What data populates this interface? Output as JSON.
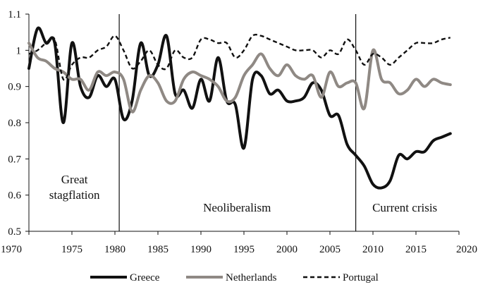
{
  "chart_data": {
    "type": "line",
    "title": "",
    "xlabel": "",
    "ylabel": "",
    "xlim": [
      1970,
      2020
    ],
    "ylim": [
      0.5,
      1.1
    ],
    "x_ticks": [
      1970,
      1975,
      1980,
      1985,
      1990,
      1995,
      2000,
      2005,
      2010,
      2015,
      2020
    ],
    "y_ticks": [
      0.5,
      0.6,
      0.7,
      0.8,
      0.9,
      1,
      1.1
    ],
    "y_tick_labels": [
      "0.5",
      "0.6",
      "0.7",
      "0.8",
      "0.9",
      "1",
      "1.1"
    ],
    "grid": false,
    "legend_position": "bottom",
    "period_dividers": [
      1980.5,
      2008
    ],
    "period_labels": [
      {
        "lines": [
          "Great",
          "stagflation"
        ],
        "x": 1975.3,
        "y": 0.59
      },
      {
        "lines": [
          "Neoliberalism"
        ],
        "x": 1994.2,
        "y": 0.555
      },
      {
        "lines": [
          "Current crisis"
        ],
        "x": 2013.7,
        "y": 0.555
      }
    ],
    "series": [
      {
        "name": "Greece",
        "color": "#111111",
        "style": "solid",
        "x": [
          1970,
          1971,
          1972,
          1973,
          1974,
          1975,
          1976,
          1977,
          1978,
          1979,
          1980,
          1981,
          1982,
          1983,
          1984,
          1985,
          1986,
          1987,
          1988,
          1989,
          1990,
          1991,
          1992,
          1993,
          1994,
          1995,
          1996,
          1997,
          1998,
          1999,
          2000,
          2001,
          2002,
          2003,
          2004,
          2005,
          2006,
          2007,
          2008,
          2009,
          2010,
          2011,
          2012,
          2013,
          2014,
          2015,
          2016,
          2017,
          2018,
          2019
        ],
        "values": [
          0.95,
          1.06,
          1.02,
          1.02,
          0.8,
          1.02,
          0.9,
          0.87,
          0.93,
          0.9,
          0.92,
          0.81,
          0.86,
          1.02,
          0.93,
          0.96,
          1.04,
          0.88,
          0.89,
          0.84,
          0.92,
          0.86,
          0.98,
          0.86,
          0.85,
          0.73,
          0.92,
          0.93,
          0.88,
          0.89,
          0.86,
          0.86,
          0.87,
          0.91,
          0.89,
          0.82,
          0.82,
          0.74,
          0.71,
          0.68,
          0.63,
          0.62,
          0.64,
          0.71,
          0.7,
          0.72,
          0.72,
          0.75,
          0.76,
          0.77
        ]
      },
      {
        "name": "Netherlands",
        "color": "#8f8984",
        "style": "solid",
        "x": [
          1970,
          1971,
          1972,
          1973,
          1974,
          1975,
          1976,
          1977,
          1978,
          1979,
          1980,
          1981,
          1982,
          1983,
          1984,
          1985,
          1986,
          1987,
          1988,
          1989,
          1990,
          1991,
          1992,
          1993,
          1994,
          1995,
          1996,
          1997,
          1998,
          1999,
          2000,
          2001,
          2002,
          2003,
          2004,
          2005,
          2006,
          2007,
          2008,
          2009,
          2010,
          2011,
          2012,
          2013,
          2014,
          2015,
          2016,
          2017,
          2018,
          2019
        ],
        "values": [
          1.02,
          0.98,
          0.97,
          0.95,
          0.94,
          0.92,
          0.92,
          0.89,
          0.94,
          0.93,
          0.94,
          0.92,
          0.83,
          0.89,
          0.93,
          0.91,
          0.86,
          0.86,
          0.92,
          0.94,
          0.93,
          0.92,
          0.9,
          0.86,
          0.87,
          0.93,
          0.96,
          0.99,
          0.95,
          0.93,
          0.96,
          0.93,
          0.92,
          0.93,
          0.87,
          0.94,
          0.9,
          0.91,
          0.91,
          0.84,
          1.0,
          0.92,
          0.91,
          0.88,
          0.89,
          0.92,
          0.9,
          0.92,
          0.91,
          0.905
        ]
      },
      {
        "name": "Portugal",
        "color": "#111111",
        "style": "dashed",
        "x": [
          1970,
          1971,
          1972,
          1973,
          1974,
          1975,
          1976,
          1977,
          1978,
          1979,
          1980,
          1981,
          1982,
          1983,
          1984,
          1985,
          1986,
          1987,
          1988,
          1989,
          1990,
          1991,
          1992,
          1993,
          1994,
          1995,
          1996,
          1997,
          1998,
          1999,
          2000,
          2001,
          2002,
          2003,
          2004,
          2005,
          2006,
          2007,
          2008,
          2009,
          2010,
          2011,
          2012,
          2013,
          2014,
          2015,
          2016,
          2017,
          2018,
          2019
        ],
        "values": [
          0.99,
          1.0,
          1.02,
          1.03,
          0.92,
          0.96,
          0.98,
          0.98,
          1.0,
          1.01,
          1.04,
          1.0,
          0.95,
          0.97,
          1.0,
          0.96,
          0.95,
          1.0,
          0.98,
          0.98,
          1.03,
          1.03,
          1.02,
          1.02,
          0.98,
          1.0,
          1.04,
          1.04,
          1.03,
          1.02,
          1.01,
          1.0,
          1.0,
          1.0,
          0.98,
          1.0,
          0.99,
          1.03,
          1.0,
          0.96,
          0.99,
          0.98,
          0.96,
          0.98,
          1.0,
          1.02,
          1.02,
          1.02,
          1.03,
          1.035
        ]
      }
    ]
  }
}
